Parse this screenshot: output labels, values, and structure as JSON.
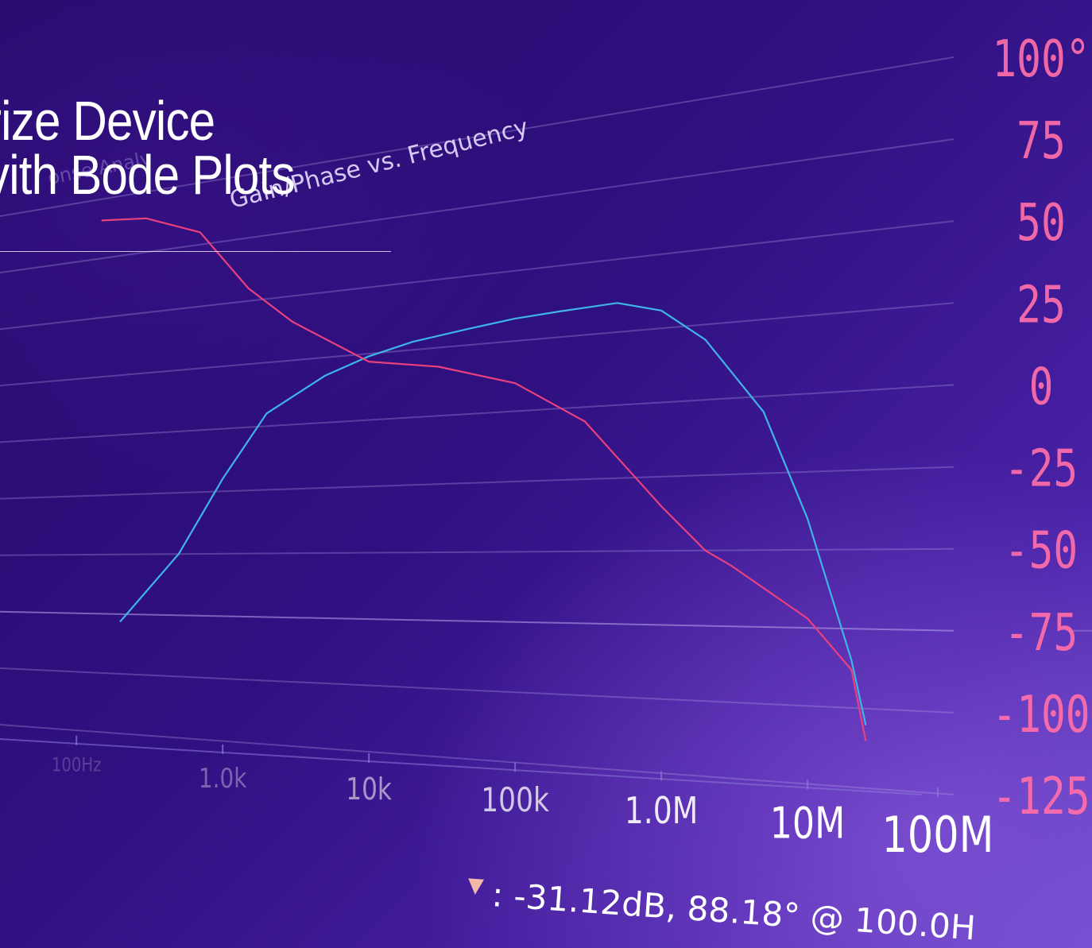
{
  "headline": {
    "line1": "rize Device",
    "line2": "vith Bode Plots"
  },
  "chart_data": {
    "type": "line",
    "title": "Gain/Phase vs. Frequency",
    "window_label": "onse Analy",
    "x_scale": "log",
    "xlabel": "",
    "ylabel": "",
    "x_ticks": [
      "100Hz",
      "1.0k",
      "10k",
      "100k",
      "1.0M",
      "10M",
      "100M"
    ],
    "y_ticks": [
      "100°",
      "75",
      "50",
      "25",
      "0",
      "-25",
      "-50",
      "-75",
      "-100",
      "-125"
    ],
    "ylim": [
      -125,
      100
    ],
    "grid": true,
    "series": [
      {
        "name": "Gain",
        "color": "#3fb4e6",
        "x": [
          200,
          500,
          1000,
          2000,
          5000,
          10000,
          20000,
          50000,
          100000,
          200000,
          500000,
          1000000,
          2000000,
          5000000,
          10000000,
          20000000,
          25000000
        ],
        "y": [
          -78,
          -50,
          -20,
          5,
          18,
          24,
          28,
          31,
          33,
          34,
          35,
          31,
          20,
          -5,
          -40,
          -85,
          -105
        ]
      },
      {
        "name": "Phase",
        "color": "#e8407e",
        "x": [
          150,
          300,
          700,
          1500,
          3000,
          10000,
          30000,
          100000,
          300000,
          1000000,
          2000000,
          3000000,
          10000000,
          20000000,
          25000000
        ],
        "y": [
          91,
          89,
          80,
          55,
          40,
          22,
          18,
          10,
          -5,
          -35,
          -50,
          -55,
          -72,
          -88,
          -110
        ]
      }
    ]
  },
  "marker": {
    "symbol": "▼",
    "readout": ": -31.12dB, 88.18° @ 100.0H"
  },
  "colors": {
    "background": "#2f1080",
    "gain_trace": "#3fb4e6",
    "phase_trace": "#e8407e",
    "y_tick_text": "#ff6fa8",
    "grid_line": "#b9a8ee"
  }
}
